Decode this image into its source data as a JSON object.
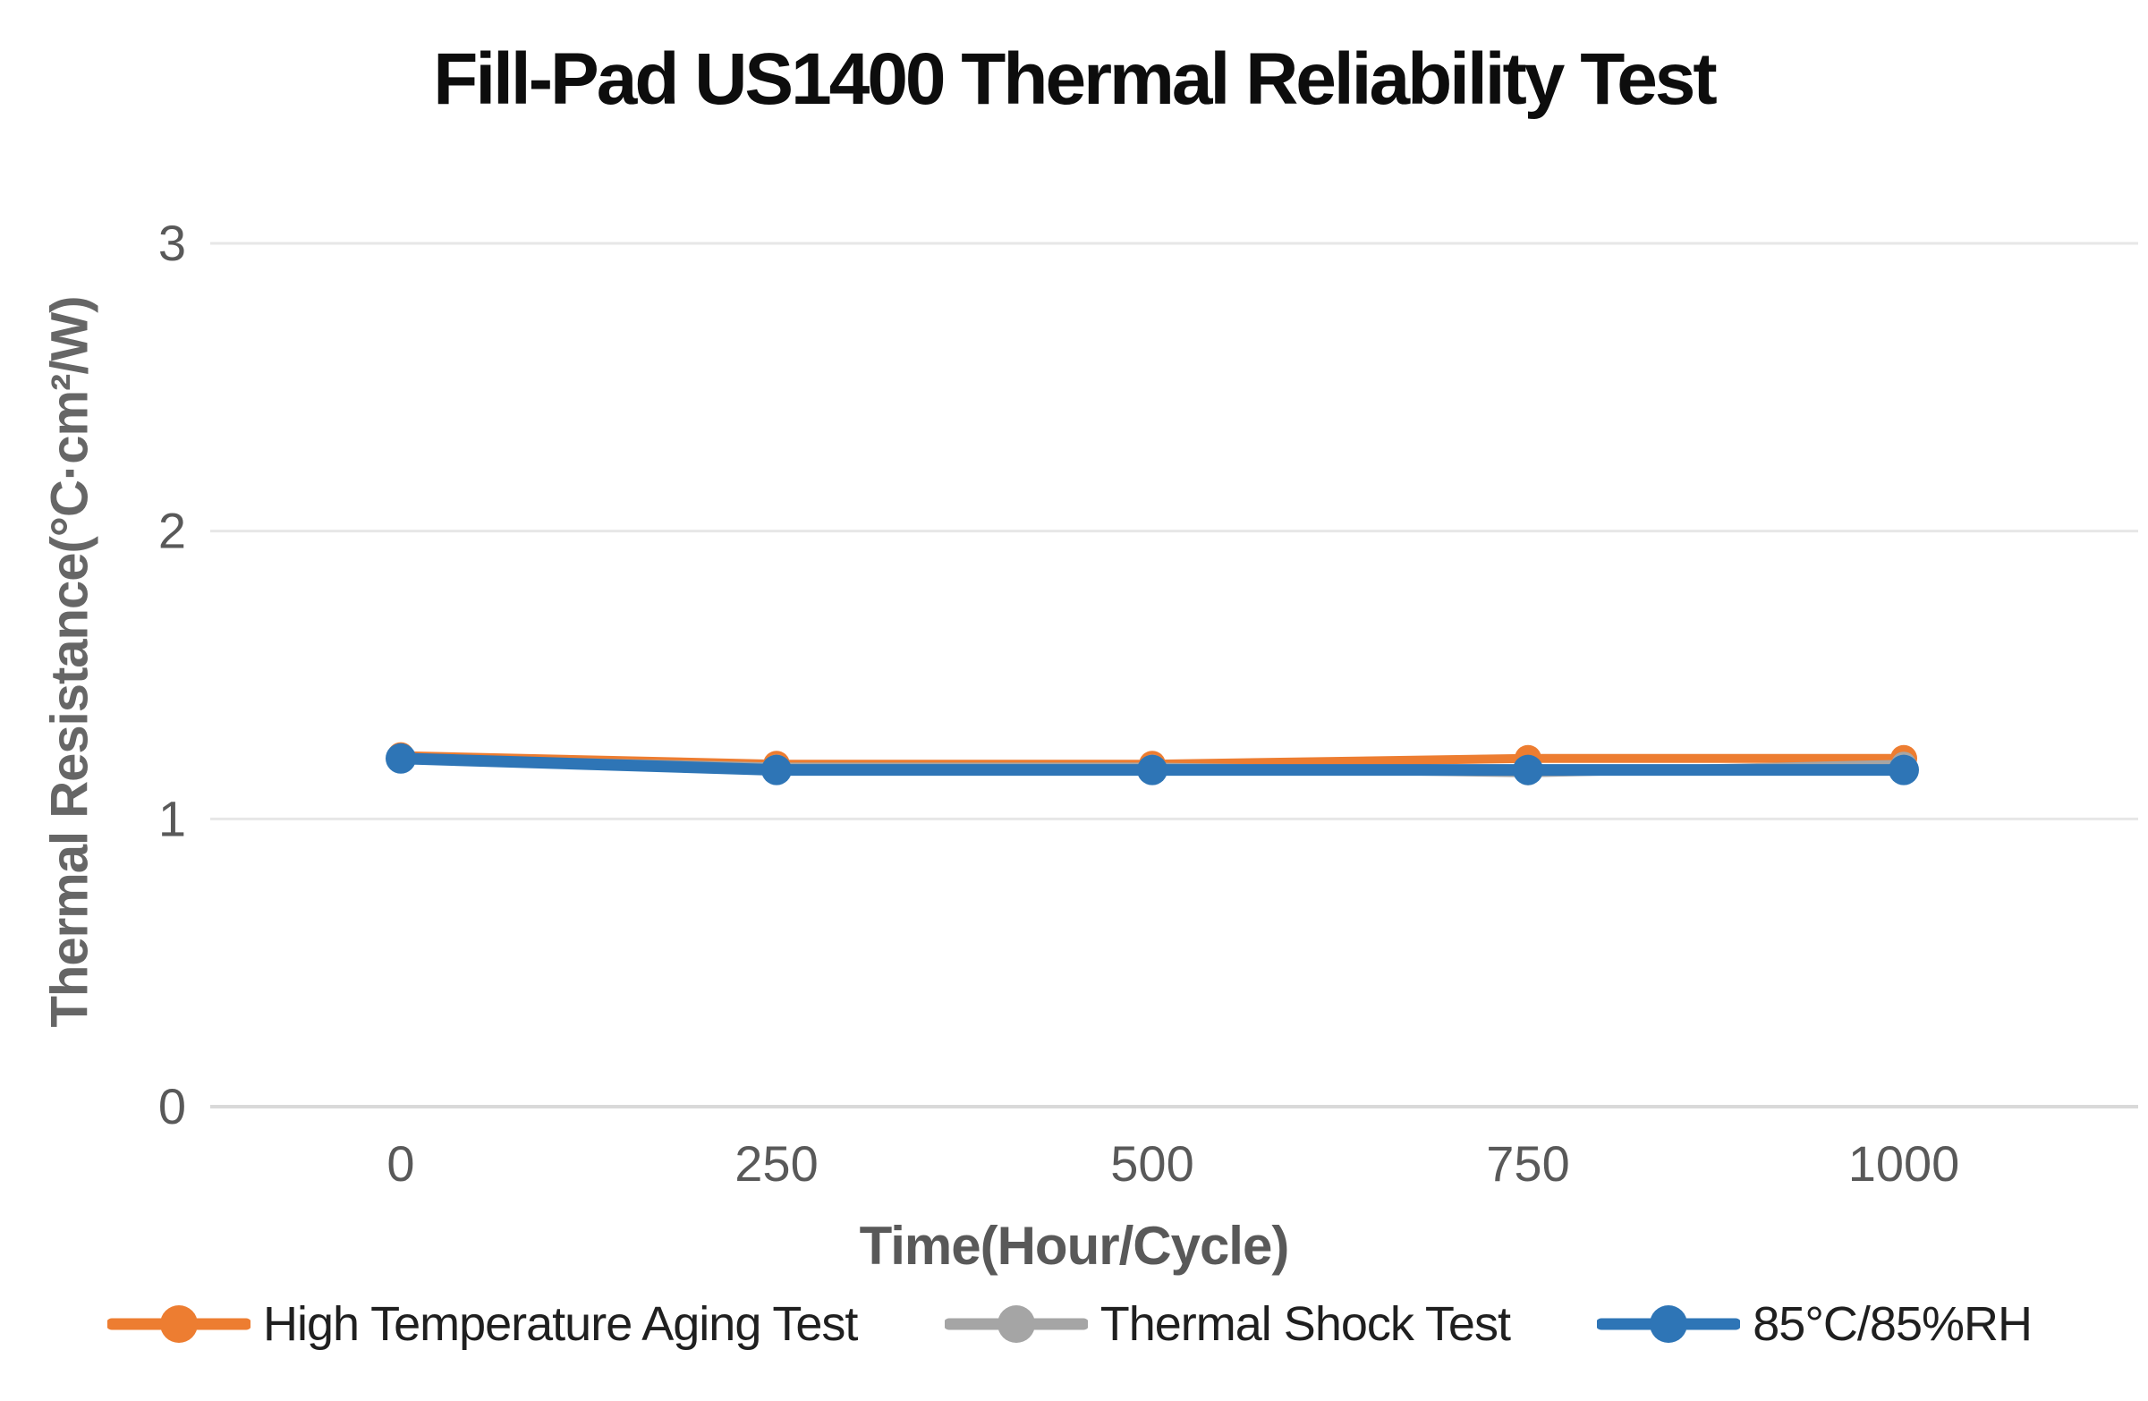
{
  "chart_data": {
    "type": "line",
    "title": "Fill-Pad US1400 Thermal Reliability Test",
    "xlabel": "Time(Hour/Cycle)",
    "ylabel": "Thermal Resistance(°C·cm²/W)",
    "x": [
      0,
      250,
      500,
      750,
      1000
    ],
    "xtick_labels": [
      "0",
      "250",
      "500",
      "750",
      "1000"
    ],
    "ytick_values": [
      0,
      1,
      2,
      3
    ],
    "ytick_labels": [
      "0",
      "1",
      "2",
      "3"
    ],
    "ylim": [
      0,
      3
    ],
    "grid": true,
    "legend_position": "bottom",
    "series": [
      {
        "name": "High Temperature Aging Test",
        "color": "#ED7D31",
        "values": [
          1.22,
          1.19,
          1.19,
          1.21,
          1.21
        ]
      },
      {
        "name": "Thermal Shock Test",
        "color": "#A5A5A5",
        "values": [
          1.21,
          1.18,
          1.18,
          1.16,
          1.19
        ]
      },
      {
        "name": "85°C/85%RH",
        "color": "#2E75B6",
        "values": [
          1.21,
          1.17,
          1.17,
          1.17,
          1.17
        ]
      }
    ],
    "colors": {
      "gridline": "#e7e7e7",
      "axis_line": "#d9d9d9",
      "tick_label": "#595959",
      "title": "#0d0d0d",
      "axis_title": "#595959"
    }
  }
}
